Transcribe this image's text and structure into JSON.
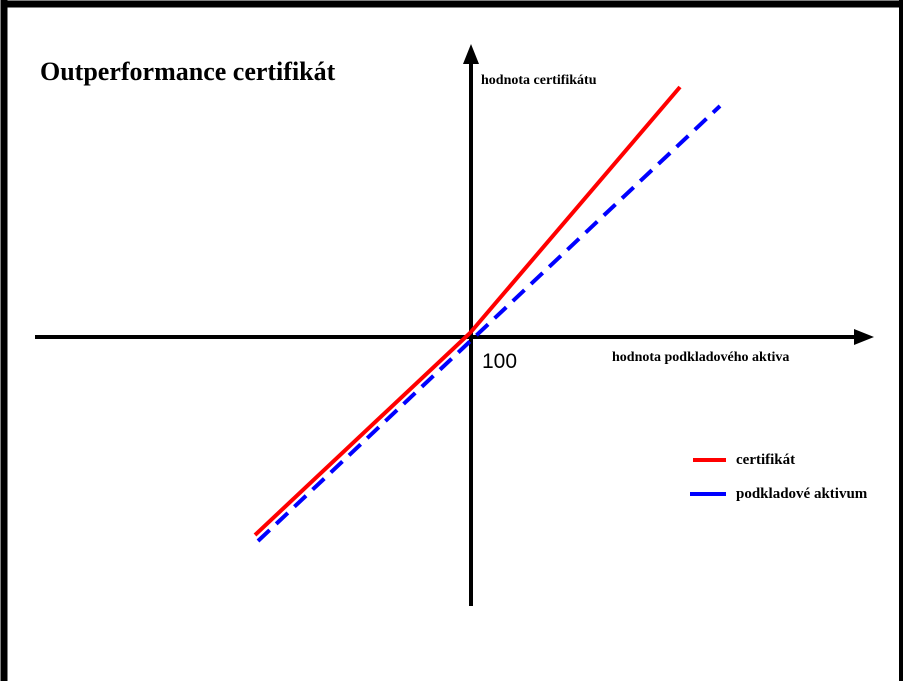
{
  "title": "Outperformance certifikát",
  "axes": {
    "y_label": "hodnota certifikátu",
    "x_label": "hodnota podkladového aktiva",
    "origin_label": "100"
  },
  "legend": [
    {
      "label": "certifikát",
      "color": "#ff0000"
    },
    {
      "label": "podkladové aktivum",
      "color": "#0000ff"
    }
  ]
}
